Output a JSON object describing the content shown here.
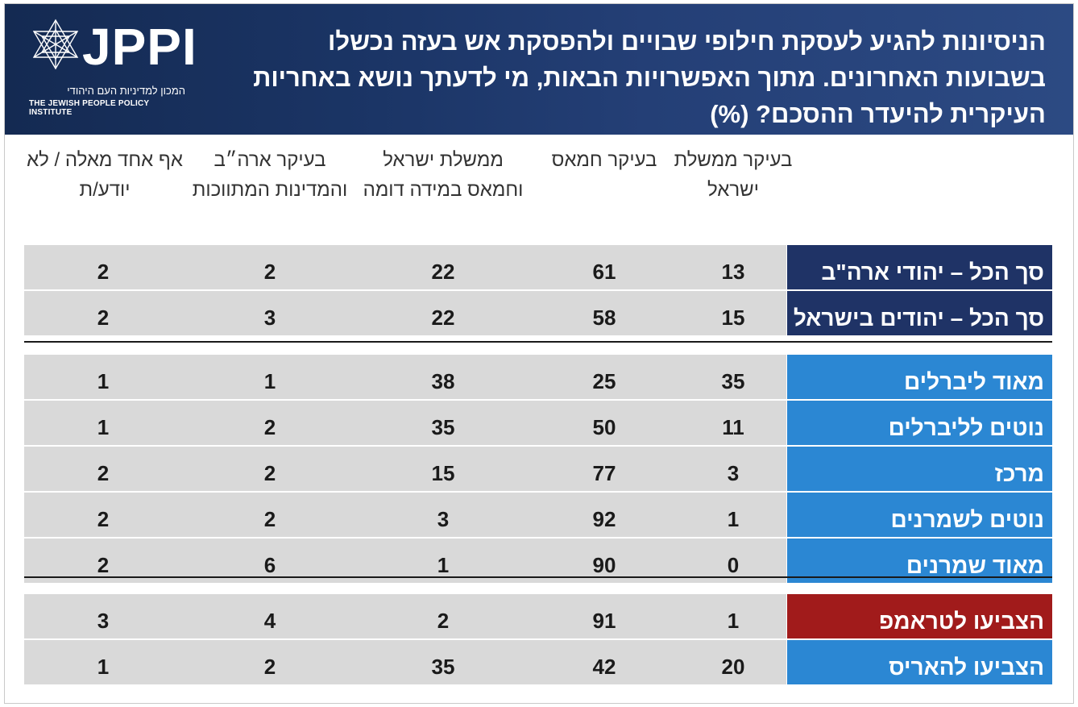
{
  "header": {
    "title": "הניסיונות להגיע לעסקת חילופי שבויים ולהפסקת אש בעזה נכשלו בשבועות האחרונים. מתוך האפשרויות הבאות, מי לדעתך נושא באחריות העיקרית להיעדר ההסכם? (%)",
    "logo_word": "JPPI",
    "logo_hebrew": "המכון למדיניות העם היהודי",
    "logo_english": "THE JEWISH PEOPLE POLICY INSTITUTE"
  },
  "colors": {
    "header_bg": "#1b3566",
    "navy_label": "#1f3366",
    "blue_label": "#2b87d3",
    "red_label": "#a11b1b",
    "cell_bg": "#d9d9d9"
  },
  "chart_data": {
    "type": "table",
    "columns": [
      "בעיקר ממשלת ישראל",
      "בעיקר חמאס",
      "ממשלת ישראל וחמאס במידה דומה",
      "בעיקר ארה״ב והמדינות המתווכות",
      "אף אחד מאלה / לא יודע/ת"
    ],
    "groups": [
      {
        "rows": [
          {
            "label": "סך הכל – יהודי ארה\"ב",
            "color": "#1f3366",
            "values": [
              13,
              61,
              22,
              2,
              2
            ]
          },
          {
            "label": "סך הכל – יהודים בישראל",
            "color": "#1f3366",
            "values": [
              15,
              58,
              22,
              3,
              2
            ]
          }
        ]
      },
      {
        "rows": [
          {
            "label": "מאוד ליברלים",
            "color": "#2b87d3",
            "values": [
              35,
              25,
              38,
              1,
              1
            ]
          },
          {
            "label": "נוטים לליברלים",
            "color": "#2b87d3",
            "values": [
              11,
              50,
              35,
              2,
              1
            ]
          },
          {
            "label": "מרכז",
            "color": "#2b87d3",
            "values": [
              3,
              77,
              15,
              2,
              2
            ]
          },
          {
            "label": "נוטים לשמרנים",
            "color": "#2b87d3",
            "values": [
              1,
              92,
              3,
              2,
              2
            ]
          },
          {
            "label": "מאוד שמרנים",
            "color": "#2b87d3",
            "values": [
              0,
              90,
              1,
              6,
              2
            ]
          }
        ]
      },
      {
        "rows": [
          {
            "label": "הצביעו לטראמפ",
            "color": "#a11b1b",
            "values": [
              1,
              91,
              2,
              4,
              3
            ]
          },
          {
            "label": "הצביעו להאריס",
            "color": "#2b87d3",
            "values": [
              20,
              42,
              35,
              2,
              1
            ]
          }
        ]
      }
    ]
  }
}
